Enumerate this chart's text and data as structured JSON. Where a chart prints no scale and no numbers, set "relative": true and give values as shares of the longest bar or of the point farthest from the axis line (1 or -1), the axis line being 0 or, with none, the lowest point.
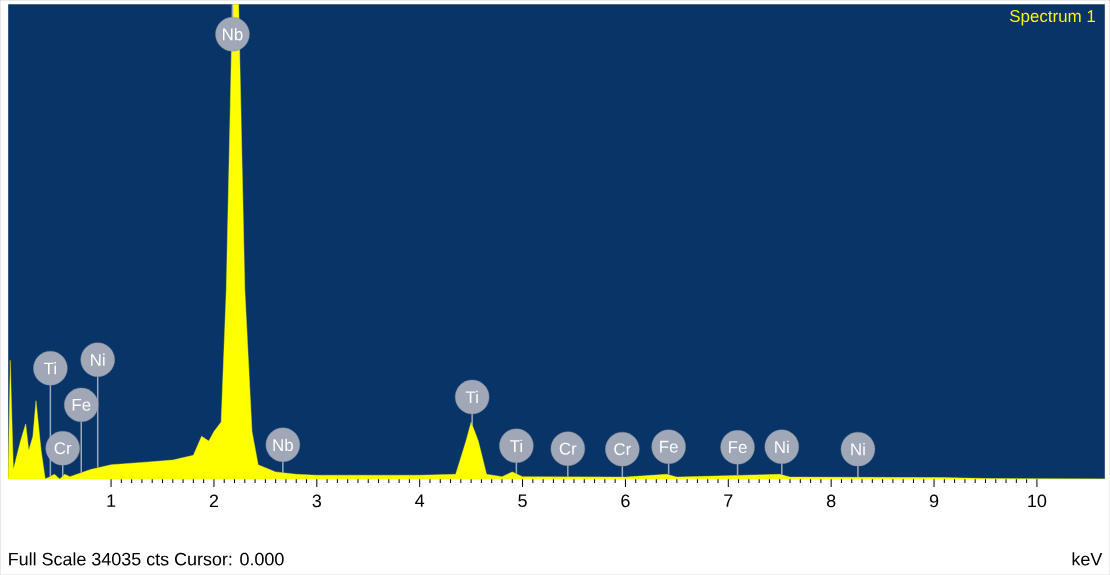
{
  "chart_data": {
    "type": "area",
    "relative": true,
    "xlabel": "keV",
    "legend": "top right",
    "xlim": [
      0,
      10.66
    ],
    "xticks": [
      1,
      2,
      3,
      4,
      5,
      6,
      7,
      8,
      9,
      10
    ],
    "x": [
      0,
      0.02,
      0.05,
      0.12,
      0.17,
      0.2,
      0.24,
      0.27,
      0.32,
      0.36,
      0.45,
      0.5,
      0.55,
      0.6,
      0.8,
      1.0,
      1.3,
      1.6,
      1.8,
      1.88,
      1.95,
      2.0,
      2.07,
      2.12,
      2.18,
      2.24,
      2.3,
      2.37,
      2.43,
      2.6,
      2.8,
      3.0,
      4.0,
      4.35,
      4.45,
      4.5,
      4.57,
      4.65,
      4.8,
      4.9,
      5.0,
      6.0,
      6.4,
      6.5,
      7.5,
      7.6,
      9.1,
      9.5,
      10.66
    ],
    "series": [
      {
        "name": "Spectrum 1",
        "color": "#ffff00",
        "values": [
          0,
          0.25,
          0.02,
          0.08,
          0.116,
          0.06,
          0.09,
          0.165,
          0.06,
          0,
          0.01,
          0,
          0.01,
          0.005,
          0.02,
          0.03,
          0.035,
          0.04,
          0.05,
          0.09,
          0.08,
          0.1,
          0.12,
          0.4,
          1.0,
          1.0,
          0.4,
          0.1,
          0.03,
          0.015,
          0.01,
          0.008,
          0.008,
          0.01,
          0.08,
          0.12,
          0.08,
          0.01,
          0.005,
          0.015,
          0.005,
          0.004,
          0.01,
          0.004,
          0.01,
          0.004,
          0.003,
          0.001,
          0
        ]
      }
    ],
    "annotations": [
      {
        "text": "Cr",
        "x": 0.53,
        "y": 0.006
      },
      {
        "text": "Fe",
        "x": 0.71,
        "y": 0.013
      },
      {
        "text": "Ti",
        "x": 0.41,
        "y": 0.006
      },
      {
        "text": "Ni",
        "x": 0.87,
        "y": 0.024
      },
      {
        "text": "Nb",
        "x": 2.18,
        "y": 1.0
      },
      {
        "text": "Nb",
        "x": 2.67,
        "y": 0.013
      },
      {
        "text": "Ti",
        "x": 4.51,
        "y": 0.114
      },
      {
        "text": "Ti",
        "x": 4.94,
        "y": 0.011
      },
      {
        "text": "Cr",
        "x": 5.44,
        "y": 0.005
      },
      {
        "text": "Cr",
        "x": 5.97,
        "y": 0.004
      },
      {
        "text": "Fe",
        "x": 6.42,
        "y": 0.009
      },
      {
        "text": "Fe",
        "x": 7.09,
        "y": 0.008
      },
      {
        "text": "Ni",
        "x": 7.52,
        "y": 0.009
      },
      {
        "text": "Ni",
        "x": 8.26,
        "y": 0.004
      },
      "Full Scale 34035 cts Cursor: 0.000"
    ]
  }
}
